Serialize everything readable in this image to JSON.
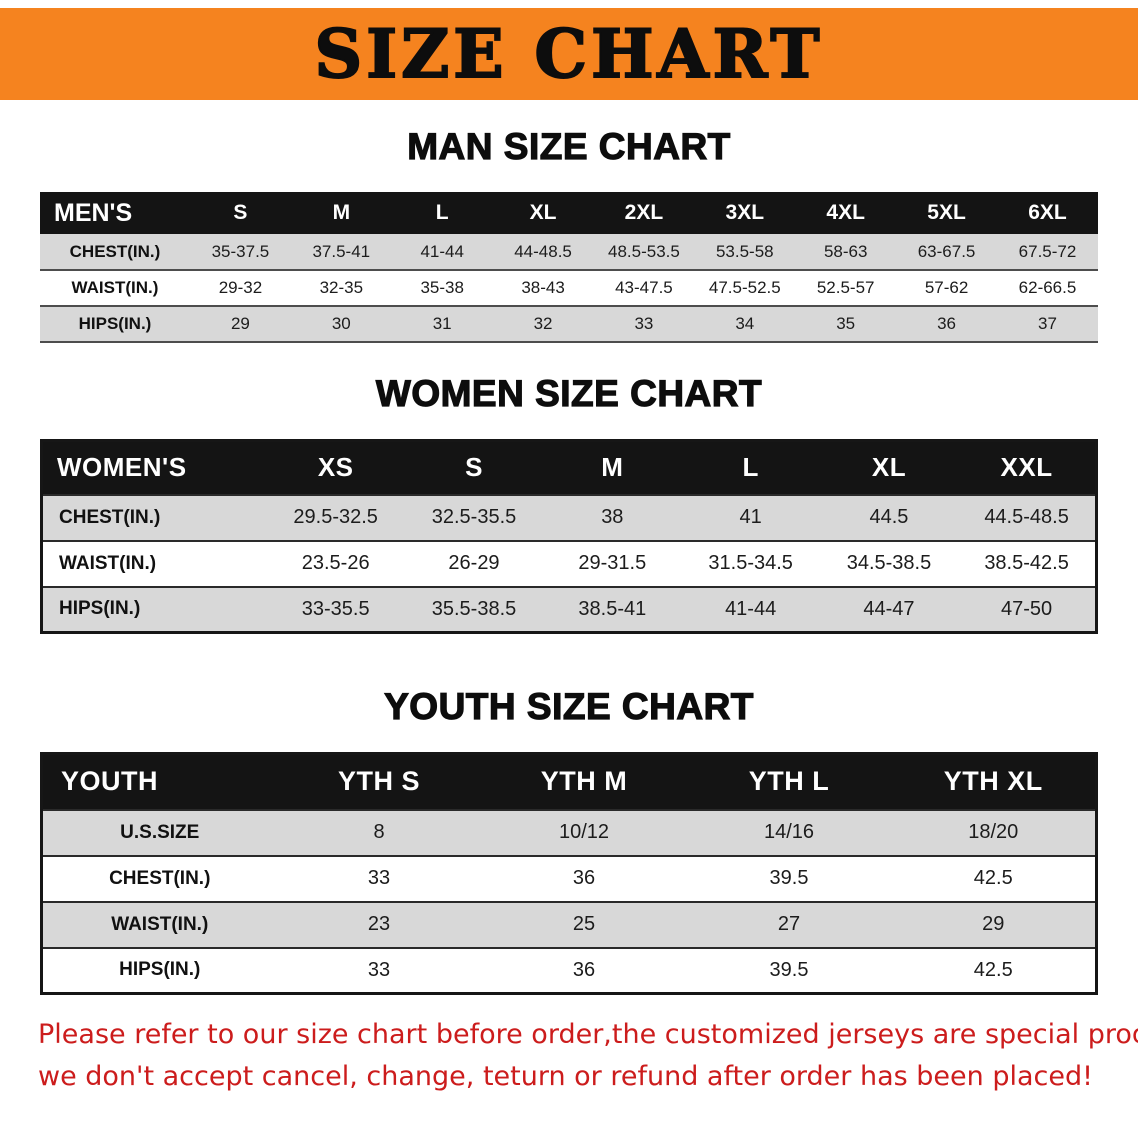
{
  "colors": {
    "banner_bg": "#F5831F",
    "header_bg": "#141414",
    "row_alt": "#D8D8D8",
    "note_red": "#CC1C1C"
  },
  "banner": {
    "title": "SIZE CHART"
  },
  "chart_data": [
    {
      "type": "table",
      "title": "MAN SIZE CHART",
      "corner": "MEN'S",
      "columns": [
        "S",
        "M",
        "L",
        "XL",
        "2XL",
        "3XL",
        "4XL",
        "5XL",
        "6XL"
      ],
      "rows": [
        {
          "label": "CHEST(IN.)",
          "values": [
            "35-37.5",
            "37.5-41",
            "41-44",
            "44-48.5",
            "48.5-53.5",
            "53.5-58",
            "58-63",
            "63-67.5",
            "67.5-72"
          ]
        },
        {
          "label": "WAIST(IN.)",
          "values": [
            "29-32",
            "32-35",
            "35-38",
            "38-43",
            "43-47.5",
            "47.5-52.5",
            "52.5-57",
            "57-62",
            "62-66.5"
          ]
        },
        {
          "label": "HIPS(IN.)",
          "values": [
            "29",
            "30",
            "31",
            "32",
            "33",
            "34",
            "35",
            "36",
            "37"
          ]
        }
      ]
    },
    {
      "type": "table",
      "title": "WOMEN SIZE CHART",
      "corner": "WOMEN'S",
      "columns": [
        "XS",
        "S",
        "M",
        "L",
        "XL",
        "XXL"
      ],
      "rows": [
        {
          "label": "CHEST(IN.)",
          "values": [
            "29.5-32.5",
            "32.5-35.5",
            "38",
            "41",
            "44.5",
            "44.5-48.5"
          ]
        },
        {
          "label": "WAIST(IN.)",
          "values": [
            "23.5-26",
            "26-29",
            "29-31.5",
            "31.5-34.5",
            "34.5-38.5",
            "38.5-42.5"
          ]
        },
        {
          "label": "HIPS(IN.)",
          "values": [
            "33-35.5",
            "35.5-38.5",
            "38.5-41",
            "41-44",
            "44-47",
            "47-50"
          ]
        }
      ]
    },
    {
      "type": "table",
      "title": "YOUTH SIZE CHART",
      "corner": "YOUTH",
      "columns": [
        "YTH S",
        "YTH M",
        "YTH L",
        "YTH XL"
      ],
      "rows": [
        {
          "label": "U.S.SIZE",
          "values": [
            "8",
            "10/12",
            "14/16",
            "18/20"
          ]
        },
        {
          "label": "CHEST(IN.)",
          "values": [
            "33",
            "36",
            "39.5",
            "42.5"
          ]
        },
        {
          "label": "WAIST(IN.)",
          "values": [
            "23",
            "25",
            "27",
            "29"
          ]
        },
        {
          "label": "HIPS(IN.)",
          "values": [
            "33",
            "36",
            "39.5",
            "42.5"
          ]
        }
      ]
    }
  ],
  "note": {
    "line1": "Please refer to our size chart before order,the customized jerseys are special products,",
    "line2": "we don't accept cancel, change, teturn or refund after order has been placed!"
  }
}
